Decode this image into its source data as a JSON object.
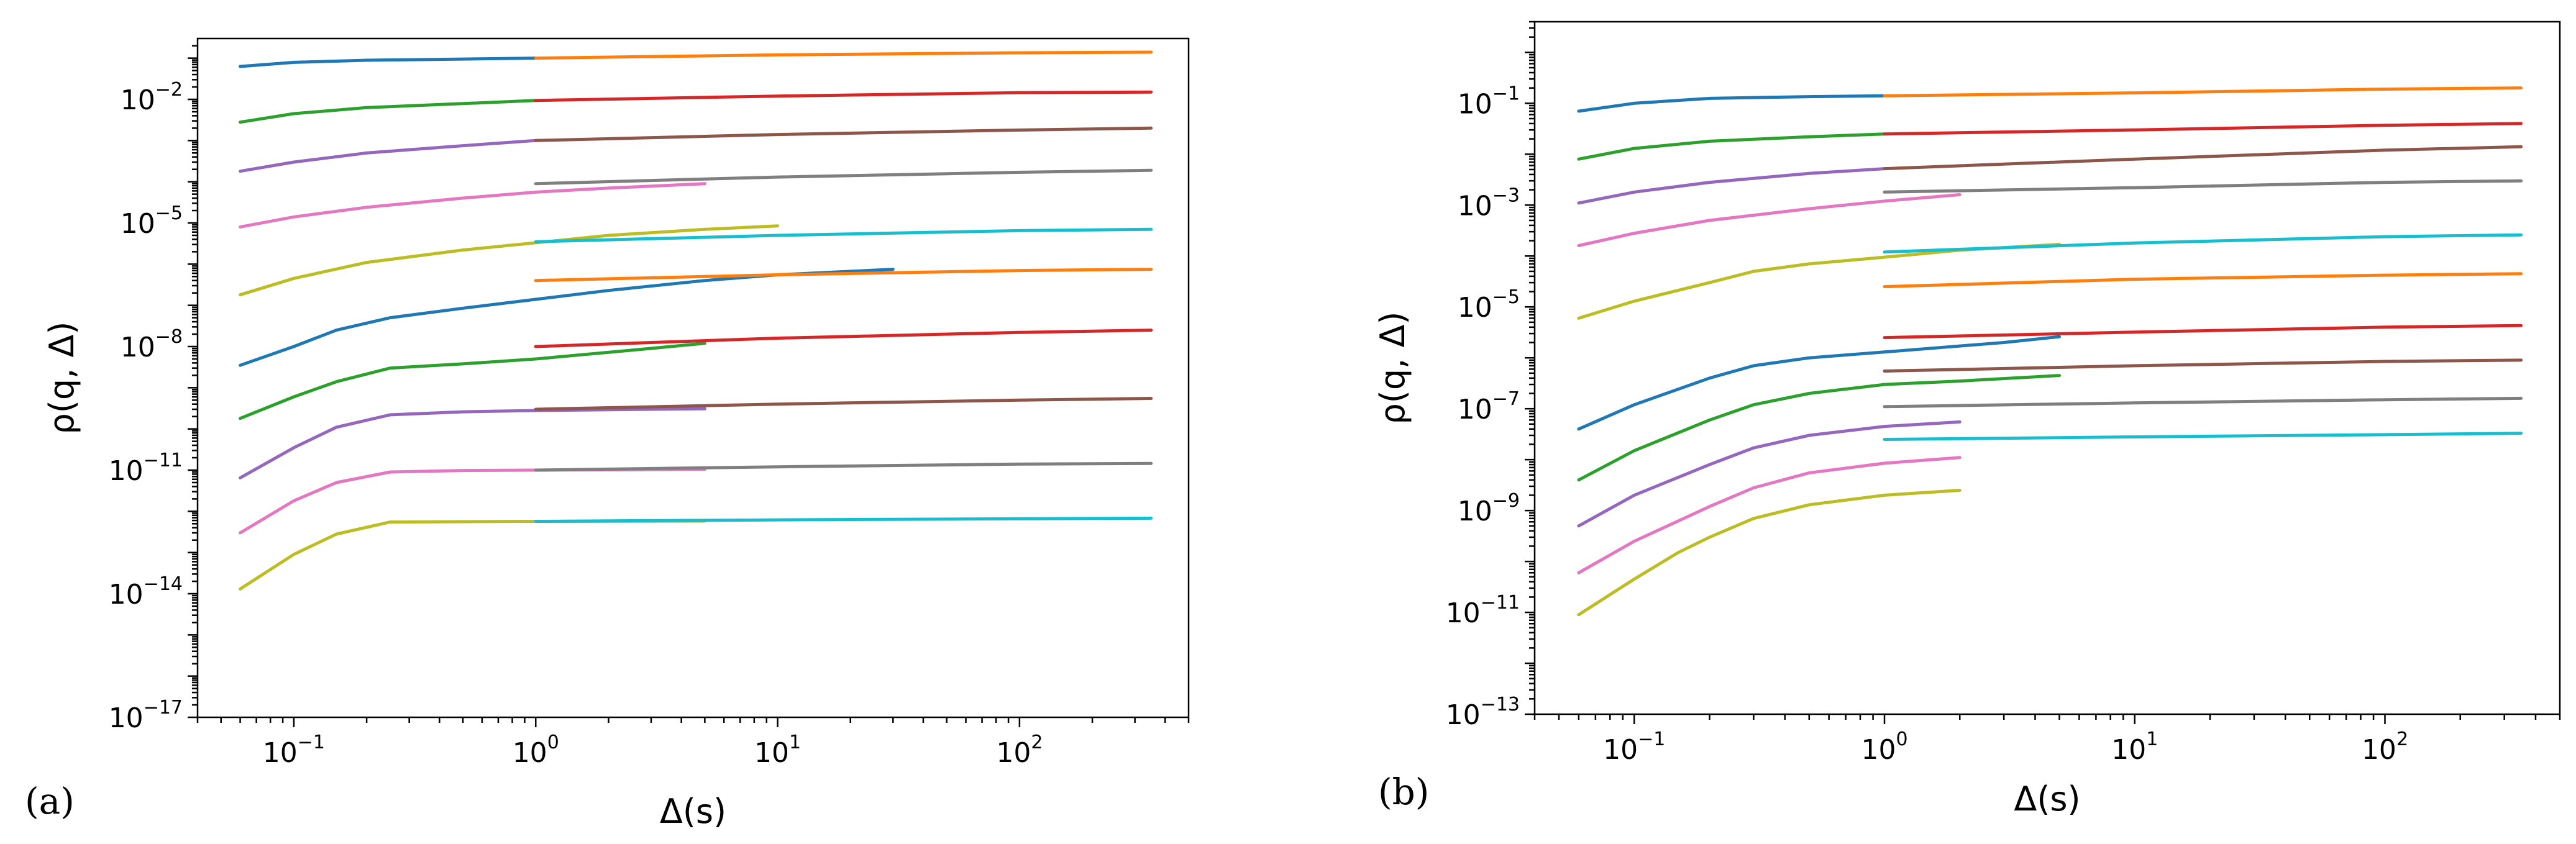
{
  "colors": [
    "#1f77b4",
    "#ff7f0e",
    "#2ca02c",
    "#d62728",
    "#9467bd",
    "#8c564b",
    "#e377c2",
    "#7f7f7f",
    "#bcbd22",
    "#17becf"
  ],
  "chart_data": [
    {
      "type": "line",
      "panel_label": "(a)",
      "title": "",
      "xlabel": "Δ(s)",
      "ylabel": "ρ(q, Δ)",
      "x_scale": "log",
      "y_scale": "log",
      "xlim": [
        0.04,
        500
      ],
      "ylim": [
        1e-17,
        0.3
      ],
      "x_ticks": [
        {
          "base": "10",
          "exp": "−1",
          "value": 0.1
        },
        {
          "base": "10",
          "exp": "0",
          "value": 1
        },
        {
          "base": "10",
          "exp": "1",
          "value": 10
        },
        {
          "base": "10",
          "exp": "2",
          "value": 100
        }
      ],
      "y_ticks": [
        {
          "base": "10",
          "exp": "−2",
          "value": 0.01
        },
        {
          "base": "10",
          "exp": "−5",
          "value": 1e-05
        },
        {
          "base": "10",
          "exp": "−8",
          "value": 1e-08
        },
        {
          "base": "10",
          "exp": "−11",
          "value": 1e-11
        },
        {
          "base": "10",
          "exp": "−14",
          "value": 1e-14
        },
        {
          "base": "10",
          "exp": "−17",
          "value": 1e-17
        }
      ],
      "grid": false,
      "series": [
        {
          "color_index": 0,
          "x": [
            0.06,
            0.1,
            0.2,
            0.5,
            1
          ],
          "y": [
            0.063,
            0.079,
            0.089,
            0.095,
            0.1
          ]
        },
        {
          "color_index": 2,
          "x": [
            0.06,
            0.1,
            0.2,
            0.5,
            1
          ],
          "y": [
            0.0028,
            0.0045,
            0.0063,
            0.0079,
            0.0094
          ]
        },
        {
          "color_index": 4,
          "x": [
            0.06,
            0.1,
            0.2,
            0.5,
            1
          ],
          "y": [
            0.00018,
            0.0003,
            0.0005,
            0.00075,
            0.001
          ]
        },
        {
          "color_index": 6,
          "x": [
            0.06,
            0.1,
            0.2,
            0.5,
            1,
            2,
            5
          ],
          "y": [
            8e-06,
            1.4e-05,
            2.4e-05,
            4e-05,
            5.6e-05,
            7e-05,
            9e-05
          ]
        },
        {
          "color_index": 8,
          "x": [
            0.06,
            0.1,
            0.2,
            0.5,
            1,
            2,
            5,
            10
          ],
          "y": [
            1.8e-07,
            4.5e-07,
            1.1e-06,
            2.2e-06,
            3.3e-06,
            5e-06,
            7e-06,
            8.5e-06
          ]
        },
        {
          "color_index": 0,
          "x": [
            0.06,
            0.1,
            0.15,
            0.25,
            0.5,
            1,
            2,
            5,
            10,
            30
          ],
          "y": [
            3.5e-09,
            1e-08,
            2.5e-08,
            5e-08,
            8.5e-08,
            1.4e-07,
            2.3e-07,
            4e-07,
            5.5e-07,
            7.5e-07
          ]
        },
        {
          "color_index": 2,
          "x": [
            0.06,
            0.1,
            0.15,
            0.25,
            0.5,
            1,
            3,
            5
          ],
          "y": [
            1.8e-10,
            6e-10,
            1.4e-09,
            3e-09,
            3.8e-09,
            5e-09,
            9e-09,
            1.2e-08
          ]
        },
        {
          "color_index": 4,
          "x": [
            0.06,
            0.1,
            0.15,
            0.25,
            0.5,
            1,
            5
          ],
          "y": [
            6.5e-12,
            3.5e-11,
            1.1e-10,
            2.2e-10,
            2.6e-10,
            2.8e-10,
            3.1e-10
          ]
        },
        {
          "color_index": 6,
          "x": [
            0.06,
            0.1,
            0.15,
            0.25,
            0.5,
            1,
            5
          ],
          "y": [
            3e-13,
            1.8e-12,
            5e-12,
            9e-12,
            9.8e-12,
            1e-11,
            1.05e-11
          ]
        },
        {
          "color_index": 8,
          "x": [
            0.06,
            0.1,
            0.15,
            0.25,
            0.5,
            1,
            5
          ],
          "y": [
            1.3e-14,
            9e-14,
            2.8e-13,
            5.5e-13,
            5.6e-13,
            5.7e-13,
            5.8e-13
          ]
        },
        {
          "color_index": 1,
          "x": [
            1,
            10,
            100,
            350
          ],
          "y": [
            0.1,
            0.12,
            0.135,
            0.14
          ]
        },
        {
          "color_index": 3,
          "x": [
            1,
            10,
            100,
            350
          ],
          "y": [
            0.0094,
            0.012,
            0.0145,
            0.015
          ]
        },
        {
          "color_index": 5,
          "x": [
            1,
            10,
            100,
            350
          ],
          "y": [
            0.001,
            0.0014,
            0.0018,
            0.002
          ]
        },
        {
          "color_index": 7,
          "x": [
            1,
            10,
            100,
            350
          ],
          "y": [
            9e-05,
            0.00013,
            0.00017,
            0.00019
          ]
        },
        {
          "color_index": 9,
          "x": [
            1,
            10,
            100,
            350
          ],
          "y": [
            3.5e-06,
            5e-06,
            6.5e-06,
            7e-06
          ]
        },
        {
          "color_index": 1,
          "x": [
            1,
            10,
            100,
            350
          ],
          "y": [
            4e-07,
            5.5e-07,
            7e-07,
            7.5e-07
          ]
        },
        {
          "color_index": 3,
          "x": [
            1,
            10,
            100,
            350
          ],
          "y": [
            1e-08,
            1.6e-08,
            2.2e-08,
            2.5e-08
          ]
        },
        {
          "color_index": 5,
          "x": [
            1,
            10,
            100,
            350
          ],
          "y": [
            3e-10,
            4e-10,
            5e-10,
            5.5e-10
          ]
        },
        {
          "color_index": 7,
          "x": [
            1,
            10,
            100,
            350
          ],
          "y": [
            1e-11,
            1.2e-11,
            1.4e-11,
            1.45e-11
          ]
        },
        {
          "color_index": 9,
          "x": [
            1,
            10,
            100,
            350
          ],
          "y": [
            5.7e-13,
            6.2e-13,
            6.6e-13,
            6.8e-13
          ]
        }
      ]
    },
    {
      "type": "line",
      "panel_label": "(b)",
      "title": "",
      "xlabel": "Δ(s)",
      "ylabel": "ρ(q, Δ)",
      "x_scale": "log",
      "y_scale": "log",
      "xlim": [
        0.04,
        500
      ],
      "ylim": [
        1e-13,
        4
      ],
      "x_ticks": [
        {
          "base": "10",
          "exp": "−1",
          "value": 0.1
        },
        {
          "base": "10",
          "exp": "0",
          "value": 1
        },
        {
          "base": "10",
          "exp": "1",
          "value": 10
        },
        {
          "base": "10",
          "exp": "2",
          "value": 100
        }
      ],
      "y_ticks": [
        {
          "base": "10",
          "exp": "−1",
          "value": 0.1
        },
        {
          "base": "10",
          "exp": "−3",
          "value": 0.001
        },
        {
          "base": "10",
          "exp": "−5",
          "value": 1e-05
        },
        {
          "base": "10",
          "exp": "−7",
          "value": 1e-07
        },
        {
          "base": "10",
          "exp": "−9",
          "value": 1e-09
        },
        {
          "base": "10",
          "exp": "−11",
          "value": 1e-11
        },
        {
          "base": "10",
          "exp": "−13",
          "value": 1e-13
        }
      ],
      "grid": false,
      "series": [
        {
          "color_index": 0,
          "x": [
            0.06,
            0.1,
            0.2,
            0.5,
            1
          ],
          "y": [
            0.07,
            0.1,
            0.125,
            0.135,
            0.14
          ]
        },
        {
          "color_index": 2,
          "x": [
            0.06,
            0.1,
            0.2,
            0.5,
            1
          ],
          "y": [
            0.008,
            0.013,
            0.018,
            0.022,
            0.025
          ]
        },
        {
          "color_index": 4,
          "x": [
            0.06,
            0.1,
            0.2,
            0.5,
            1
          ],
          "y": [
            0.0011,
            0.0018,
            0.0028,
            0.0042,
            0.0052
          ]
        },
        {
          "color_index": 6,
          "x": [
            0.06,
            0.1,
            0.2,
            0.5,
            1,
            2
          ],
          "y": [
            0.00016,
            0.00028,
            0.0005,
            0.00085,
            0.0012,
            0.0016
          ]
        },
        {
          "color_index": 8,
          "x": [
            0.06,
            0.1,
            0.2,
            0.3,
            0.5,
            1,
            2,
            5
          ],
          "y": [
            6e-06,
            1.3e-05,
            3e-05,
            5e-05,
            7e-05,
            9.5e-05,
            0.00013,
            0.00017
          ]
        },
        {
          "color_index": 0,
          "x": [
            0.06,
            0.1,
            0.2,
            0.3,
            0.5,
            1,
            3,
            5
          ],
          "y": [
            4e-08,
            1.2e-07,
            4e-07,
            7e-07,
            1e-06,
            1.3e-06,
            2e-06,
            2.6e-06
          ]
        },
        {
          "color_index": 2,
          "x": [
            0.06,
            0.1,
            0.2,
            0.3,
            0.5,
            1,
            2,
            5
          ],
          "y": [
            4e-09,
            1.5e-08,
            6e-08,
            1.2e-07,
            2e-07,
            3e-07,
            3.5e-07,
            4.5e-07
          ]
        },
        {
          "color_index": 4,
          "x": [
            0.06,
            0.1,
            0.2,
            0.3,
            0.5,
            1,
            2
          ],
          "y": [
            5e-10,
            2e-09,
            8e-09,
            1.7e-08,
            3e-08,
            4.5e-08,
            5.5e-08
          ]
        },
        {
          "color_index": 6,
          "x": [
            0.06,
            0.1,
            0.2,
            0.3,
            0.5,
            1,
            2
          ],
          "y": [
            6e-11,
            2.5e-10,
            1.2e-09,
            2.8e-09,
            5.5e-09,
            8.5e-09,
            1.1e-08
          ]
        },
        {
          "color_index": 8,
          "x": [
            0.06,
            0.1,
            0.15,
            0.2,
            0.3,
            0.5,
            1,
            2
          ],
          "y": [
            9e-12,
            4.5e-11,
            1.5e-10,
            3e-10,
            7e-10,
            1.3e-09,
            2e-09,
            2.5e-09
          ]
        },
        {
          "color_index": 1,
          "x": [
            1,
            10,
            100,
            350
          ],
          "y": [
            0.14,
            0.16,
            0.19,
            0.2
          ]
        },
        {
          "color_index": 3,
          "x": [
            1,
            10,
            100,
            350
          ],
          "y": [
            0.025,
            0.03,
            0.037,
            0.04
          ]
        },
        {
          "color_index": 5,
          "x": [
            1,
            10,
            100,
            350
          ],
          "y": [
            0.0052,
            0.008,
            0.012,
            0.014
          ]
        },
        {
          "color_index": 7,
          "x": [
            1,
            10,
            100,
            350
          ],
          "y": [
            0.0018,
            0.0022,
            0.0028,
            0.003
          ]
        },
        {
          "color_index": 9,
          "x": [
            1,
            10,
            100,
            350
          ],
          "y": [
            0.00012,
            0.00018,
            0.00024,
            0.00026
          ]
        },
        {
          "color_index": 1,
          "x": [
            1,
            10,
            100,
            350
          ],
          "y": [
            2.5e-05,
            3.5e-05,
            4.2e-05,
            4.5e-05
          ]
        },
        {
          "color_index": 3,
          "x": [
            1,
            10,
            100,
            350
          ],
          "y": [
            2.5e-06,
            3.2e-06,
            4e-06,
            4.3e-06
          ]
        },
        {
          "color_index": 5,
          "x": [
            1,
            10,
            100,
            350
          ],
          "y": [
            5.5e-07,
            7e-07,
            8.5e-07,
            9e-07
          ]
        },
        {
          "color_index": 7,
          "x": [
            1,
            10,
            100,
            350
          ],
          "y": [
            1.1e-07,
            1.3e-07,
            1.5e-07,
            1.6e-07
          ]
        },
        {
          "color_index": 9,
          "x": [
            1,
            10,
            100,
            350
          ],
          "y": [
            2.5e-08,
            2.8e-08,
            3.1e-08,
            3.3e-08
          ]
        }
      ]
    }
  ]
}
